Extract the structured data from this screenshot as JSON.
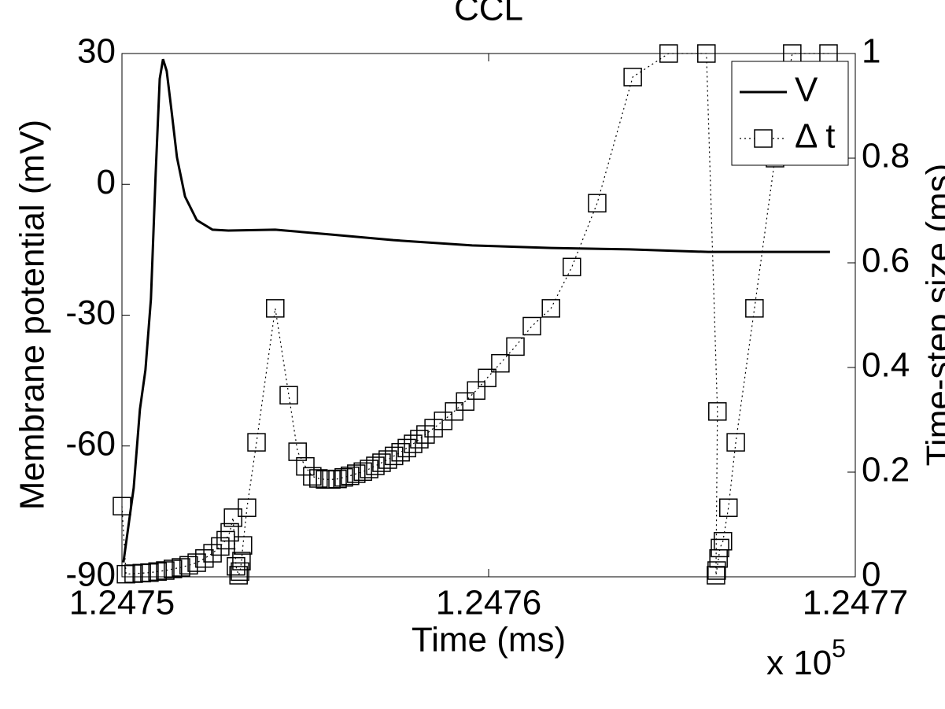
{
  "chart_data": {
    "type": "line",
    "title": "CCL",
    "x_label": "Time (ms)",
    "y_label": "Membrane potential (mV)",
    "y2_label": "Time-step size (ms)",
    "x_multiplier": {
      "base": "x 10",
      "exponent": "5"
    },
    "xlim": [
      1.2475,
      1.2477
    ],
    "xticks": [
      1.2475,
      1.2476,
      1.2477
    ],
    "ylim": [
      -90,
      30
    ],
    "yticks": [
      -90,
      -60,
      -30,
      0,
      30
    ],
    "y2lim": [
      0,
      1
    ],
    "y2ticks": [
      0,
      0.2,
      0.4,
      0.6,
      0.8,
      1
    ],
    "legend": "upper right",
    "series": [
      {
        "name": "V",
        "color": "#000000",
        "line_style": "solid",
        "marker": "none",
        "axis": "y",
        "x": [
          1.2475004,
          1.2475032,
          1.2475049,
          1.2475064,
          1.2475079,
          1.2475092,
          1.2475103,
          1.2475112,
          1.2475122,
          1.2475135,
          1.247515,
          1.2475172,
          1.2475204,
          1.2475247,
          1.247529,
          1.2475418,
          1.2475569,
          1.247574,
          1.2475955,
          1.247617,
          1.2476384,
          1.2476599,
          1.2476813,
          1.2476931
        ],
        "values": [
          -86.7,
          -69.6,
          -51.6,
          -42.6,
          -26.3,
          2.6,
          24.2,
          28.7,
          26.0,
          17.0,
          6.2,
          -2.8,
          -8.2,
          -10.4,
          -10.6,
          -10.4,
          -11.5,
          -12.8,
          -14.0,
          -14.6,
          -14.9,
          -15.5,
          -15.5,
          -15.5
        ]
      },
      {
        "name": "Δ t",
        "color": "#000000",
        "line_style": "dotted",
        "marker": "square",
        "axis": "y2",
        "x": [
          1.2475,
          1.2475011,
          1.2475032,
          1.2475054,
          1.2475075,
          1.2475097,
          1.2475118,
          1.2475139,
          1.2475161,
          1.2475182,
          1.2475204,
          1.2475225,
          1.2475247,
          1.2475268,
          1.2475283,
          1.2475294,
          1.2475303,
          1.2475311,
          1.2475318,
          1.2475322,
          1.2475326,
          1.247533,
          1.2475341,
          1.2475367,
          1.2475418,
          1.2475455,
          1.2475479,
          1.24755,
          1.2475519,
          1.2475536,
          1.2475554,
          1.2475571,
          1.2475588,
          1.2475605,
          1.2475622,
          1.2475639,
          1.2475657,
          1.2475674,
          1.2475691,
          1.2475708,
          1.2475725,
          1.2475742,
          1.247576,
          1.2475777,
          1.2475794,
          1.2475811,
          1.2475828,
          1.247585,
          1.2475876,
          1.2475906,
          1.2475936,
          1.2475966,
          1.2475996,
          1.2476032,
          1.2476073,
          1.2476118,
          1.247617,
          1.2476227,
          1.2476296,
          1.2476393,
          1.2476491,
          1.2476594,
          1.2476624,
          1.247662,
          1.2476622,
          1.2476627,
          1.2476631,
          1.2476639,
          1.2476654,
          1.2476674,
          1.2476725,
          1.2476781,
          1.2476828,
          1.2476927
        ],
        "values": [
          0.135,
          0.005,
          0.006,
          0.007,
          0.008,
          0.01,
          0.012,
          0.015,
          0.018,
          0.022,
          0.027,
          0.035,
          0.045,
          0.058,
          0.07,
          0.085,
          0.113,
          0.02,
          0.003,
          0.01,
          0.03,
          0.06,
          0.132,
          0.257,
          0.513,
          0.347,
          0.239,
          0.211,
          0.192,
          0.188,
          0.186,
          0.186,
          0.187,
          0.19,
          0.193,
          0.197,
          0.201,
          0.206,
          0.212,
          0.218,
          0.224,
          0.231,
          0.238,
          0.246,
          0.254,
          0.263,
          0.272,
          0.284,
          0.298,
          0.316,
          0.335,
          0.356,
          0.38,
          0.408,
          0.44,
          0.479,
          0.513,
          0.592,
          0.714,
          0.955,
          1.0,
          1.0,
          0.316,
          0.003,
          0.012,
          0.035,
          0.055,
          0.068,
          0.132,
          0.257,
          0.513,
          0.8,
          1.0,
          1.0
        ]
      }
    ]
  }
}
